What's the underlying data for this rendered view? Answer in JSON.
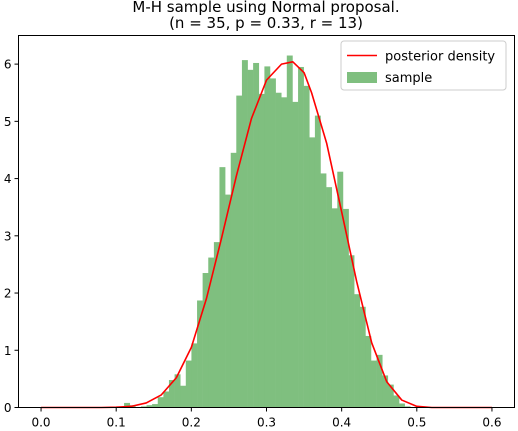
{
  "chart_data": {
    "type": "bar",
    "title": "M-H sample using Normal proposal.",
    "subtitle": "(n = 35, p = 0.33, r = 13)",
    "xlabel": "",
    "ylabel": "",
    "xlim": [
      -0.03,
      0.63
    ],
    "ylim": [
      0,
      6.5
    ],
    "xticks": [
      "0.0",
      "0.1",
      "0.2",
      "0.3",
      "0.4",
      "0.5",
      "0.6"
    ],
    "xtick_values": [
      0.0,
      0.1,
      0.2,
      0.3,
      0.4,
      0.5,
      0.6
    ],
    "yticks": [
      "0",
      "1",
      "2",
      "3",
      "4",
      "5",
      "6"
    ],
    "ytick_values": [
      0,
      1,
      2,
      3,
      4,
      5,
      6
    ],
    "grid": false,
    "legend": {
      "placement": "top-right",
      "entries": [
        {
          "label": "posterior density",
          "kind": "line",
          "color": "#ff0000"
        },
        {
          "label": "sample",
          "kind": "patch",
          "color": "#7fbf7f"
        }
      ]
    },
    "series": [
      {
        "name": "sample",
        "kind": "histogram",
        "color": "#7fbf7f",
        "bin_width": 0.00747,
        "bins": [
          [
            0.1105,
            0.118,
            0.08
          ],
          [
            0.118,
            0.1254,
            0.04
          ],
          [
            0.1254,
            0.1329,
            0.0
          ],
          [
            0.1329,
            0.1404,
            0.02
          ],
          [
            0.1404,
            0.1478,
            0.04
          ],
          [
            0.1478,
            0.1553,
            0.06
          ],
          [
            0.1553,
            0.1628,
            0.18
          ],
          [
            0.1628,
            0.1702,
            0.28
          ],
          [
            0.1702,
            0.1777,
            0.48
          ],
          [
            0.1777,
            0.1852,
            0.58
          ],
          [
            0.1852,
            0.1926,
            0.38
          ],
          [
            0.1926,
            0.2001,
            0.82
          ],
          [
            0.2001,
            0.2076,
            1.12
          ],
          [
            0.2076,
            0.215,
            1.87
          ],
          [
            0.215,
            0.2225,
            2.35
          ],
          [
            0.2225,
            0.23,
            2.62
          ],
          [
            0.23,
            0.2374,
            2.89
          ],
          [
            0.2374,
            0.2449,
            4.2
          ],
          [
            0.2449,
            0.2524,
            3.72
          ],
          [
            0.2524,
            0.2598,
            4.45
          ],
          [
            0.2598,
            0.2673,
            5.45
          ],
          [
            0.2673,
            0.2748,
            6.07
          ],
          [
            0.2748,
            0.2822,
            5.9
          ],
          [
            0.2822,
            0.2897,
            6.02
          ],
          [
            0.2897,
            0.2972,
            5.48
          ],
          [
            0.2972,
            0.3046,
            5.96
          ],
          [
            0.3046,
            0.3121,
            5.75
          ],
          [
            0.3121,
            0.3196,
            5.5
          ],
          [
            0.3196,
            0.327,
            5.42
          ],
          [
            0.327,
            0.3345,
            6.15
          ],
          [
            0.3345,
            0.342,
            5.34
          ],
          [
            0.342,
            0.3494,
            5.95
          ],
          [
            0.3494,
            0.3569,
            5.62
          ],
          [
            0.3569,
            0.3644,
            4.72
          ],
          [
            0.3644,
            0.3718,
            5.1
          ],
          [
            0.3718,
            0.3793,
            4.09
          ],
          [
            0.3793,
            0.3868,
            3.85
          ],
          [
            0.3868,
            0.3942,
            3.48
          ],
          [
            0.3942,
            0.4017,
            4.12
          ],
          [
            0.4017,
            0.4092,
            3.47
          ],
          [
            0.4092,
            0.4166,
            2.66
          ],
          [
            0.4166,
            0.4241,
            1.98
          ],
          [
            0.4241,
            0.4316,
            1.76
          ],
          [
            0.4316,
            0.439,
            1.25
          ],
          [
            0.439,
            0.4465,
            0.82
          ],
          [
            0.4465,
            0.454,
            0.92
          ],
          [
            0.454,
            0.4614,
            0.56
          ],
          [
            0.4614,
            0.4689,
            0.4
          ],
          [
            0.4689,
            0.4764,
            0.21
          ],
          [
            0.4764,
            0.4838,
            0.07
          ],
          [
            0.4838,
            0.4913,
            0.02
          ]
        ]
      },
      {
        "name": "posterior density",
        "kind": "line",
        "color": "#ff0000",
        "points": [
          [
            0.0,
            0.0
          ],
          [
            0.08,
            0.0
          ],
          [
            0.1,
            0.005
          ],
          [
            0.12,
            0.02
          ],
          [
            0.14,
            0.08
          ],
          [
            0.16,
            0.22
          ],
          [
            0.18,
            0.52
          ],
          [
            0.2,
            1.05
          ],
          [
            0.22,
            1.9
          ],
          [
            0.24,
            2.95
          ],
          [
            0.26,
            4.05
          ],
          [
            0.28,
            5.05
          ],
          [
            0.3,
            5.72
          ],
          [
            0.32,
            6.0
          ],
          [
            0.335,
            6.04
          ],
          [
            0.35,
            5.85
          ],
          [
            0.36,
            5.5
          ],
          [
            0.38,
            4.62
          ],
          [
            0.4,
            3.42
          ],
          [
            0.42,
            2.2
          ],
          [
            0.44,
            1.13
          ],
          [
            0.46,
            0.45
          ],
          [
            0.48,
            0.13
          ],
          [
            0.5,
            0.02
          ],
          [
            0.52,
            0.0
          ],
          [
            0.6,
            0.0
          ]
        ]
      }
    ]
  }
}
